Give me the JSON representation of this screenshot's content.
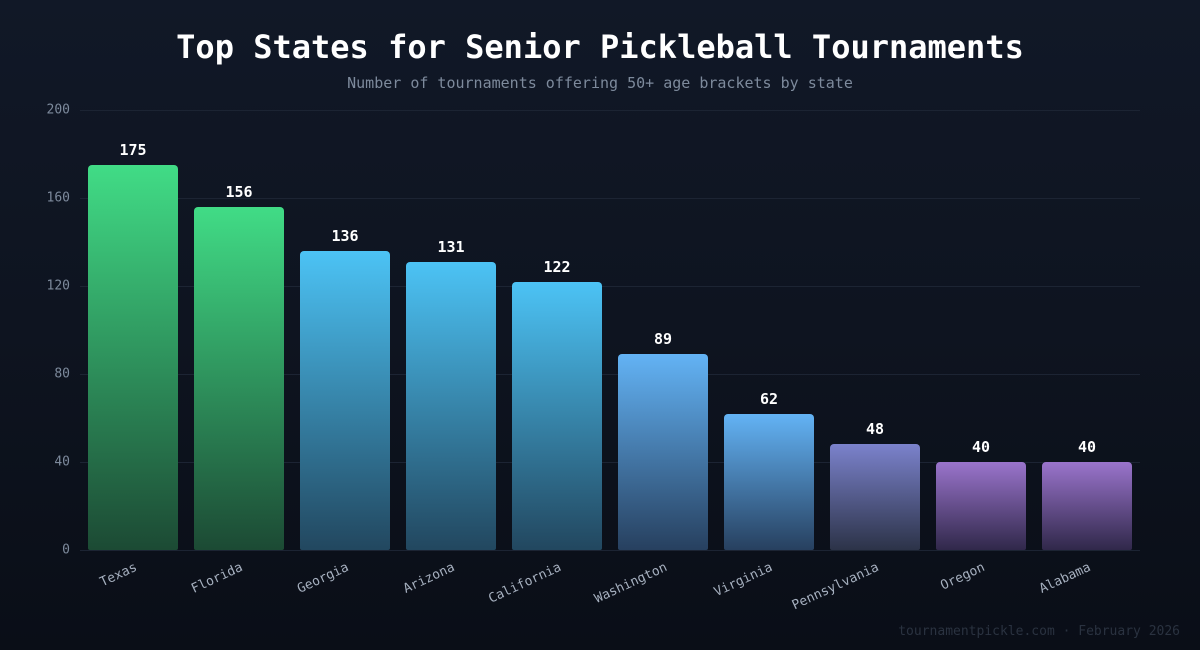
{
  "header": {
    "title": "Top States for Senior Pickleball Tournaments",
    "subtitle": "Number of tournaments offering 50+ age brackets by state"
  },
  "footer": {
    "credit": "tournamentpickle.com · February 2026"
  },
  "axis": {
    "y_ticks": [
      "0",
      "40",
      "80",
      "120",
      "160",
      "200"
    ]
  },
  "bars": [
    {
      "label": "Texas",
      "value": "175",
      "top": "#41dc86",
      "bottom": "#1c4a34"
    },
    {
      "label": "Florida",
      "value": "156",
      "top": "#41dc86",
      "bottom": "#1c4a34"
    },
    {
      "label": "Georgia",
      "value": "136",
      "top": "#4cc3f5",
      "bottom": "#22475f"
    },
    {
      "label": "Arizona",
      "value": "131",
      "top": "#4cc3f5",
      "bottom": "#22475f"
    },
    {
      "label": "California",
      "value": "122",
      "top": "#4cc3f5",
      "bottom": "#22475f"
    },
    {
      "label": "Washington",
      "value": "89",
      "top": "#63b3f5",
      "bottom": "#27405f"
    },
    {
      "label": "Virginia",
      "value": "62",
      "top": "#63b3f5",
      "bottom": "#27405f"
    },
    {
      "label": "Pennsylvania",
      "value": "48",
      "top": "#7b82cc",
      "bottom": "#2c3348"
    },
    {
      "label": "Oregon",
      "value": "40",
      "top": "#9a74cc",
      "bottom": "#30284a"
    },
    {
      "label": "Alabama",
      "value": "40",
      "top": "#9a74cc",
      "bottom": "#30284a"
    }
  ],
  "chart_data": {
    "type": "bar",
    "title": "Top States for Senior Pickleball Tournaments",
    "subtitle": "Number of tournaments offering 50+ age brackets by state",
    "categories": [
      "Texas",
      "Florida",
      "Georgia",
      "Arizona",
      "California",
      "Washington",
      "Virginia",
      "Pennsylvania",
      "Oregon",
      "Alabama"
    ],
    "values": [
      175,
      156,
      136,
      131,
      122,
      89,
      62,
      48,
      40,
      40
    ],
    "xlabel": "",
    "ylabel": "",
    "ylim": [
      0,
      200
    ],
    "y_ticks": [
      0,
      40,
      80,
      120,
      160,
      200
    ],
    "grid": true,
    "legend": null,
    "data_labels": true,
    "annotations": [
      "tournamentpickle.com · February 2026"
    ]
  }
}
